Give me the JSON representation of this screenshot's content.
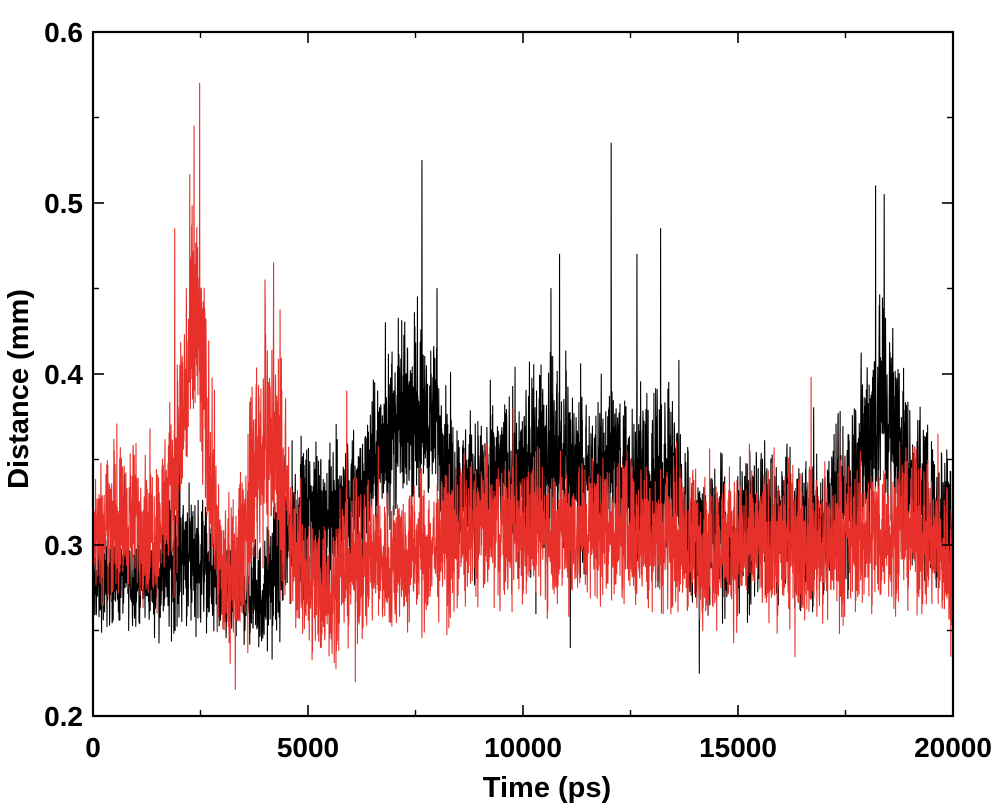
{
  "chart_data": {
    "type": "line",
    "title": "",
    "xlabel": "Time (ps)",
    "ylabel": "Distance (mm)",
    "xlim": [
      0,
      20000
    ],
    "ylim": [
      0.2,
      0.6
    ],
    "x_ticks": [
      0,
      5000,
      10000,
      15000,
      20000
    ],
    "x_tick_labels": [
      "0",
      "5000",
      "10000",
      "15000",
      "20000"
    ],
    "y_ticks": [
      0.2,
      0.3,
      0.4,
      0.5,
      0.6
    ],
    "y_tick_labels": [
      "0.2",
      "0.3",
      "0.4",
      "0.5",
      "0.6"
    ],
    "grid": false,
    "legend": "none",
    "series": [
      {
        "color": "#000000",
        "x": [
          0,
          500,
          1000,
          1500,
          1800,
          2000,
          2300,
          2600,
          3000,
          3300,
          3600,
          4000,
          4300,
          4600,
          5000,
          5500,
          6000,
          6500,
          7000,
          7500,
          8000,
          8500,
          9000,
          9500,
          10000,
          10500,
          11000,
          11500,
          12000,
          12500,
          13000,
          13500,
          14000,
          14500,
          15000,
          15500,
          16000,
          16500,
          17000,
          17500,
          18000,
          18300,
          18600,
          19000,
          19500,
          20000
        ],
        "center": [
          0.275,
          0.28,
          0.28,
          0.278,
          0.29,
          0.3,
          0.295,
          0.29,
          0.27,
          0.27,
          0.27,
          0.27,
          0.29,
          0.31,
          0.315,
          0.315,
          0.32,
          0.345,
          0.37,
          0.38,
          0.37,
          0.33,
          0.335,
          0.34,
          0.34,
          0.35,
          0.355,
          0.33,
          0.35,
          0.34,
          0.33,
          0.34,
          0.3,
          0.305,
          0.305,
          0.315,
          0.31,
          0.31,
          0.31,
          0.33,
          0.36,
          0.39,
          0.37,
          0.34,
          0.32,
          0.32
        ],
        "spread": [
          0.03,
          0.03,
          0.03,
          0.03,
          0.05,
          0.05,
          0.05,
          0.04,
          0.03,
          0.03,
          0.03,
          0.04,
          0.05,
          0.05,
          0.05,
          0.05,
          0.05,
          0.05,
          0.06,
          0.06,
          0.05,
          0.05,
          0.05,
          0.05,
          0.06,
          0.07,
          0.06,
          0.05,
          0.06,
          0.06,
          0.06,
          0.06,
          0.05,
          0.05,
          0.05,
          0.05,
          0.05,
          0.05,
          0.05,
          0.06,
          0.07,
          0.08,
          0.07,
          0.06,
          0.05,
          0.05
        ],
        "spikes": [
          [
            7650,
            0.525
          ],
          [
            10850,
            0.47
          ],
          [
            12050,
            0.535
          ],
          [
            13200,
            0.485
          ],
          [
            8000,
            0.45
          ],
          [
            10650,
            0.45
          ],
          [
            12650,
            0.47
          ],
          [
            18200,
            0.51
          ],
          [
            18400,
            0.505
          ],
          [
            6800,
            0.43
          ],
          [
            14100,
            0.225
          ],
          [
            11100,
            0.24
          ]
        ]
      },
      {
        "color": "#e8302a",
        "x": [
          0,
          500,
          1000,
          1500,
          1800,
          2000,
          2200,
          2400,
          2600,
          2800,
          3000,
          3300,
          3600,
          3800,
          4000,
          4200,
          4400,
          4600,
          5000,
          5500,
          6000,
          6500,
          7000,
          7500,
          8000,
          8500,
          9000,
          9500,
          10000,
          11000,
          12000,
          13000,
          14000,
          15000,
          16000,
          17000,
          18000,
          18500,
          19000,
          19500,
          20000
        ],
        "center": [
          0.31,
          0.315,
          0.315,
          0.31,
          0.33,
          0.36,
          0.4,
          0.43,
          0.38,
          0.33,
          0.28,
          0.28,
          0.32,
          0.35,
          0.36,
          0.36,
          0.34,
          0.3,
          0.28,
          0.275,
          0.29,
          0.29,
          0.29,
          0.295,
          0.3,
          0.305,
          0.31,
          0.31,
          0.31,
          0.31,
          0.31,
          0.31,
          0.3,
          0.3,
          0.3,
          0.3,
          0.305,
          0.31,
          0.31,
          0.3,
          0.29
        ],
        "spread": [
          0.05,
          0.05,
          0.05,
          0.05,
          0.06,
          0.07,
          0.09,
          0.1,
          0.08,
          0.06,
          0.05,
          0.05,
          0.06,
          0.07,
          0.08,
          0.08,
          0.07,
          0.05,
          0.05,
          0.05,
          0.05,
          0.05,
          0.05,
          0.05,
          0.05,
          0.05,
          0.05,
          0.05,
          0.05,
          0.05,
          0.05,
          0.05,
          0.05,
          0.05,
          0.05,
          0.05,
          0.05,
          0.05,
          0.05,
          0.05,
          0.05
        ],
        "spikes": [
          [
            2480,
            0.57
          ],
          [
            2350,
            0.545
          ],
          [
            1900,
            0.485
          ],
          [
            4200,
            0.465
          ],
          [
            4000,
            0.455
          ],
          [
            5900,
            0.39
          ],
          [
            16700,
            0.398
          ],
          [
            6100,
            0.22
          ],
          [
            3600,
            0.237
          ],
          [
            19950,
            0.235
          ]
        ]
      }
    ]
  }
}
